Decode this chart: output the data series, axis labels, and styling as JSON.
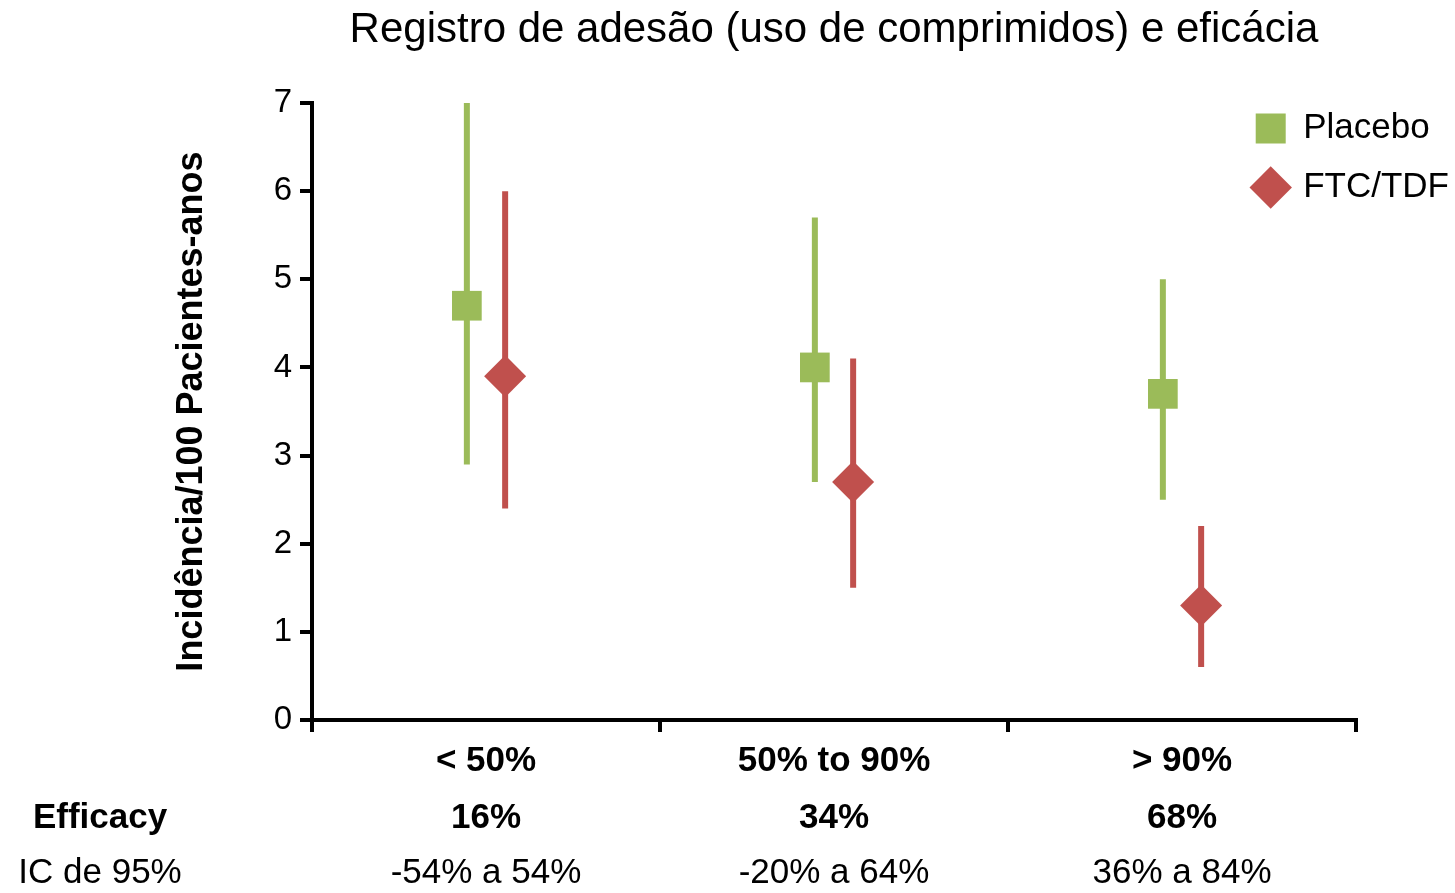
{
  "chart_data": {
    "type": "scatter",
    "title": "Registro de adesão (uso de comprimidos) e eficácia",
    "ylabel": "Incidência/100 Pacientes-anos",
    "categories": [
      "< 50%",
      "50% to 90%",
      "> 90%"
    ],
    "series": [
      {
        "name": "Placebo",
        "color": "#9bbb59",
        "marker": "square",
        "values": [
          4.7,
          4.0,
          3.7
        ],
        "errors": [
          [
            2.9,
            7.0
          ],
          [
            2.7,
            5.7
          ],
          [
            2.5,
            5.0
          ]
        ]
      },
      {
        "name": "FTC/TDF",
        "color": "#c0504d",
        "marker": "diamond",
        "values": [
          3.9,
          2.7,
          1.3
        ],
        "errors": [
          [
            2.4,
            6.0
          ],
          [
            1.5,
            4.1
          ],
          [
            0.6,
            2.2
          ]
        ]
      }
    ],
    "ylim": [
      0,
      7
    ],
    "yticks": [
      0,
      1,
      2,
      3,
      4,
      5,
      6,
      7
    ],
    "legend": "top right",
    "annotations": [
      "Efficacy",
      "16%",
      "34%",
      "68%",
      "IC de 95%",
      "-54% a 54%",
      "-20% a 64%",
      "36% a 84%"
    ]
  }
}
